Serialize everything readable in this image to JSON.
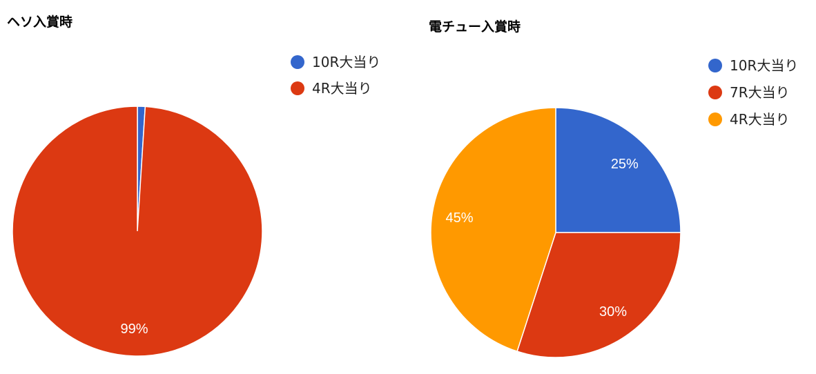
{
  "chart_data": [
    {
      "type": "pie",
      "title": "ヘソ入賞時",
      "slices": [
        {
          "label": "10R大当り",
          "value": 1,
          "color": "#3366cc",
          "display": ""
        },
        {
          "label": "4R大当り",
          "value": 99,
          "color": "#dc3912",
          "display": "99%"
        }
      ],
      "legend": "right"
    },
    {
      "type": "pie",
      "title": "電チュー入賞時",
      "slices": [
        {
          "label": "10R大当り",
          "value": 25,
          "color": "#3366cc",
          "display": "25%"
        },
        {
          "label": "7R大当り",
          "value": 30,
          "color": "#dc3912",
          "display": "30%"
        },
        {
          "label": "4R大当り",
          "value": 45,
          "color": "#ff9900",
          "display": "45%"
        }
      ],
      "legend": "right"
    }
  ]
}
